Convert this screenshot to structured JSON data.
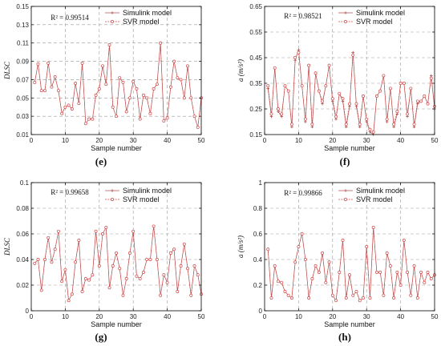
{
  "chart_data": [
    {
      "panel": "(e)",
      "type": "line",
      "ylabel": "DLSC",
      "xlabel": "Sample number",
      "r2": "R² = 0.99514",
      "xlim": [
        0,
        50
      ],
      "ylim": [
        0.01,
        0.15
      ],
      "xticks": [
        0,
        10,
        20,
        30,
        40,
        50
      ],
      "yticks": [
        0.01,
        0.03,
        0.05,
        0.07,
        0.09,
        0.11,
        0.13,
        0.15
      ],
      "ytick_labels": [
        "0.01",
        "0.03",
        "0.05",
        "0.07",
        "0.09",
        "0.11",
        "0.13",
        "0.15"
      ],
      "series": [
        {
          "name": "Simulink model",
          "values": [
            0.067,
            0.087,
            0.058,
            0.058,
            0.088,
            0.062,
            0.073,
            0.058,
            0.033,
            0.04,
            0.042,
            0.038,
            0.066,
            0.044,
            0.088,
            0.022,
            0.027,
            0.027,
            0.053,
            0.06,
            0.085,
            0.065,
            0.108,
            0.04,
            0.03,
            0.072,
            0.067,
            0.035,
            0.05,
            0.068,
            0.06,
            0.027,
            0.053,
            0.05,
            0.033,
            0.06,
            0.065,
            0.11,
            0.025,
            0.028,
            0.062,
            0.09,
            0.072,
            0.07,
            0.05,
            0.085,
            0.05,
            0.03,
            0.018,
            0.05
          ]
        },
        {
          "name": "SVR model",
          "values": [
            0.067,
            0.087,
            0.058,
            0.058,
            0.088,
            0.062,
            0.073,
            0.058,
            0.033,
            0.04,
            0.042,
            0.038,
            0.066,
            0.044,
            0.088,
            0.022,
            0.027,
            0.027,
            0.053,
            0.06,
            0.085,
            0.065,
            0.108,
            0.04,
            0.03,
            0.072,
            0.067,
            0.035,
            0.05,
            0.068,
            0.06,
            0.027,
            0.053,
            0.05,
            0.033,
            0.06,
            0.065,
            0.11,
            0.025,
            0.028,
            0.062,
            0.09,
            0.072,
            0.07,
            0.05,
            0.085,
            0.05,
            0.03,
            0.018,
            0.05
          ]
        }
      ]
    },
    {
      "panel": "(f)",
      "type": "line",
      "ylabel": "a (m/s²)",
      "xlabel": "Sample number",
      "r2": "R² = 0.98521",
      "xlim": [
        0,
        50
      ],
      "ylim": [
        0.15,
        0.65
      ],
      "xticks": [
        0,
        10,
        20,
        30,
        40,
        50
      ],
      "yticks": [
        0.15,
        0.25,
        0.35,
        0.45,
        0.55,
        0.65
      ],
      "ytick_labels": [
        "0.15",
        "0.25",
        "0.35",
        "0.45",
        "0.55",
        "0.65"
      ],
      "series": [
        {
          "name": "Simulink model",
          "values": [
            0.33,
            0.22,
            0.41,
            0.24,
            0.22,
            0.34,
            0.32,
            0.18,
            0.44,
            0.48,
            0.34,
            0.2,
            0.42,
            0.18,
            0.39,
            0.32,
            0.27,
            0.34,
            0.42,
            0.28,
            0.21,
            0.31,
            0.28,
            0.18,
            0.26,
            0.47,
            0.26,
            0.18,
            0.3,
            0.2,
            0.16,
            0.15,
            0.3,
            0.32,
            0.38,
            0.2,
            0.33,
            0.18,
            0.23,
            0.35,
            0.35,
            0.22,
            0.33,
            0.18,
            0.27,
            0.28,
            0.3,
            0.27,
            0.38,
            0.25
          ]
        },
        {
          "name": "SVR model",
          "values": [
            0.34,
            0.23,
            0.41,
            0.25,
            0.23,
            0.34,
            0.32,
            0.19,
            0.45,
            0.47,
            0.34,
            0.21,
            0.42,
            0.19,
            0.39,
            0.32,
            0.28,
            0.34,
            0.42,
            0.29,
            0.22,
            0.31,
            0.29,
            0.19,
            0.27,
            0.46,
            0.27,
            0.19,
            0.3,
            0.21,
            0.17,
            0.16,
            0.3,
            0.32,
            0.38,
            0.21,
            0.33,
            0.19,
            0.24,
            0.35,
            0.35,
            0.23,
            0.33,
            0.19,
            0.28,
            0.28,
            0.3,
            0.27,
            0.37,
            0.26
          ]
        }
      ]
    },
    {
      "panel": "(g)",
      "type": "line",
      "ylabel": "DLSC",
      "xlabel": "Sample number",
      "r2": "R² = 0.99658",
      "xlim": [
        0,
        50
      ],
      "ylim": [
        0,
        0.1
      ],
      "xticks": [
        0,
        10,
        20,
        30,
        40,
        50
      ],
      "yticks": [
        0,
        0.02,
        0.04,
        0.06,
        0.08,
        0.1
      ],
      "ytick_labels": [
        "0",
        "0.02",
        "0.04",
        "0.06",
        "0.08",
        "0.1"
      ],
      "series": [
        {
          "name": "Simulink model",
          "values": [
            0.037,
            0.04,
            0.016,
            0.04,
            0.057,
            0.038,
            0.048,
            0.062,
            0.023,
            0.032,
            0.008,
            0.013,
            0.038,
            0.055,
            0.015,
            0.025,
            0.024,
            0.028,
            0.062,
            0.035,
            0.06,
            0.065,
            0.018,
            0.035,
            0.045,
            0.033,
            0.012,
            0.025,
            0.045,
            0.062,
            0.027,
            0.025,
            0.03,
            0.04,
            0.04,
            0.066,
            0.04,
            0.012,
            0.028,
            0.022,
            0.045,
            0.048,
            0.015,
            0.035,
            0.052,
            0.033,
            0.012,
            0.035,
            0.028,
            0.013
          ]
        },
        {
          "name": "SVR model",
          "values": [
            0.037,
            0.04,
            0.016,
            0.04,
            0.057,
            0.038,
            0.048,
            0.062,
            0.023,
            0.032,
            0.008,
            0.013,
            0.038,
            0.055,
            0.015,
            0.025,
            0.024,
            0.028,
            0.062,
            0.035,
            0.06,
            0.065,
            0.018,
            0.035,
            0.045,
            0.033,
            0.012,
            0.025,
            0.045,
            0.062,
            0.027,
            0.025,
            0.03,
            0.04,
            0.04,
            0.066,
            0.04,
            0.012,
            0.028,
            0.022,
            0.045,
            0.048,
            0.015,
            0.035,
            0.052,
            0.033,
            0.012,
            0.035,
            0.028,
            0.013
          ]
        }
      ]
    },
    {
      "panel": "(h)",
      "type": "line",
      "ylabel": "a (m/s²)",
      "xlabel": "Sample number",
      "r2": "R² = 0.99866",
      "xlim": [
        0,
        50
      ],
      "ylim": [
        0,
        1
      ],
      "xticks": [
        0,
        10,
        20,
        30,
        40,
        50
      ],
      "yticks": [
        0,
        0.2,
        0.4,
        0.6,
        0.8,
        1
      ],
      "ytick_labels": [
        "0",
        "0.2",
        "0.4",
        "0.6",
        "0.8",
        "1"
      ],
      "series": [
        {
          "name": "Simulink model",
          "values": [
            0.48,
            0.1,
            0.35,
            0.23,
            0.22,
            0.15,
            0.12,
            0.1,
            0.38,
            0.5,
            0.6,
            0.4,
            0.1,
            0.25,
            0.35,
            0.3,
            0.45,
            0.22,
            0.38,
            0.12,
            0.08,
            0.3,
            0.55,
            0.1,
            0.28,
            0.12,
            0.15,
            0.08,
            0.1,
            0.5,
            0.1,
            0.65,
            0.3,
            0.3,
            0.12,
            0.45,
            0.35,
            0.1,
            0.3,
            0.2,
            0.55,
            0.3,
            0.12,
            0.35,
            0.1,
            0.3,
            0.22,
            0.3,
            0.25,
            0.28
          ]
        },
        {
          "name": "SVR model",
          "values": [
            0.48,
            0.1,
            0.35,
            0.23,
            0.22,
            0.15,
            0.12,
            0.1,
            0.38,
            0.5,
            0.6,
            0.4,
            0.1,
            0.25,
            0.35,
            0.3,
            0.45,
            0.22,
            0.38,
            0.12,
            0.08,
            0.3,
            0.55,
            0.1,
            0.28,
            0.12,
            0.15,
            0.08,
            0.1,
            0.5,
            0.1,
            0.65,
            0.3,
            0.3,
            0.12,
            0.45,
            0.35,
            0.1,
            0.3,
            0.2,
            0.55,
            0.3,
            0.12,
            0.35,
            0.1,
            0.3,
            0.22,
            0.3,
            0.25,
            0.28
          ]
        }
      ]
    }
  ],
  "colors": {
    "simulink": "#b05050",
    "svr": "#d24a4a",
    "grid": "#999999",
    "axis": "#000000"
  },
  "labels": {
    "e": "(e)",
    "f": "(f)",
    "g": "(g)",
    "h": "(h)"
  }
}
